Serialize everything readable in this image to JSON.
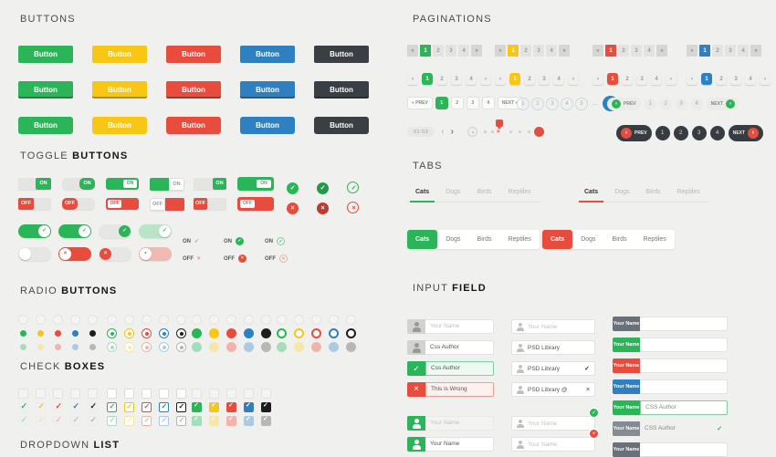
{
  "palette_buttons": [
    "green",
    "yellow",
    "red",
    "blue",
    "dark"
  ],
  "palette_rc": [
    "green",
    "yellow",
    "red",
    "blue",
    "black"
  ],
  "buttons": {
    "heading": {
      "a": "BUTTONS",
      "b": ""
    },
    "label": "Button"
  },
  "toggles": {
    "heading": {
      "a": "TOGGLE",
      "b": "BUTTONS"
    },
    "row_on": [
      {
        "v": "sq",
        "t": "ON"
      },
      {
        "v": "rd",
        "t": "ON"
      },
      {
        "v": "fill",
        "t": "ON"
      },
      {
        "v": "half",
        "t": "ON"
      },
      {
        "v": "sq2",
        "t": "ON"
      },
      {
        "v": "fill2",
        "t": "ON"
      },
      {
        "v": "c-solid",
        "t": "✓"
      },
      {
        "v": "c-solid2",
        "t": "✓"
      },
      {
        "v": "c-line",
        "t": "✓"
      }
    ],
    "row_off": [
      {
        "v": "sq",
        "t": "OFF"
      },
      {
        "v": "rd",
        "t": "OFF"
      },
      {
        "v": "fill",
        "t": "OFF"
      },
      {
        "v": "half",
        "t": "OFF"
      },
      {
        "v": "sq2",
        "t": "OFF"
      },
      {
        "v": "fill2",
        "t": "OFF"
      },
      {
        "v": "c-solid",
        "t": "×"
      },
      {
        "v": "c-solid2",
        "t": "×"
      },
      {
        "v": "c-line",
        "t": "×"
      }
    ],
    "pills_on": [
      {
        "v": "p1",
        "t": "✓"
      },
      {
        "v": "p2",
        "t": "✓"
      },
      {
        "v": "p3",
        "t": "✓"
      },
      {
        "v": "p4",
        "t": "✓"
      }
    ],
    "pills_off": [
      {
        "v": "p1",
        "t": ""
      },
      {
        "v": "p2",
        "t": "×"
      },
      {
        "v": "p3",
        "t": "×"
      },
      {
        "v": "p4",
        "t": "•"
      }
    ],
    "texts": [
      {
        "style": "plain",
        "on": {
          "t": "ON",
          "g": "✓"
        },
        "off": {
          "t": "OFF",
          "g": "×"
        }
      },
      {
        "style": "solid",
        "on": {
          "t": "ON",
          "g": "✓"
        },
        "off": {
          "t": "OFF",
          "g": "×"
        }
      },
      {
        "style": "ring",
        "on": {
          "t": "ON",
          "g": "✓"
        },
        "off": {
          "t": "OFF",
          "g": "×"
        }
      }
    ]
  },
  "radios": {
    "heading": {
      "a": "RADIO",
      "b": "BUTTONS"
    }
  },
  "checks": {
    "heading": {
      "a": "CHECK",
      "b": "BOXES"
    }
  },
  "dropdown": {
    "heading": {
      "a": "DROPDOWN",
      "b": "LIST"
    }
  },
  "paginations": {
    "heading": {
      "a": "PAGINATIONS",
      "b": ""
    },
    "row1": [
      {
        "color": "green",
        "prev": "«",
        "active": "1",
        "pages": [
          "2",
          "3",
          "4"
        ],
        "next": "»"
      },
      {
        "color": "yellow",
        "prev": "«",
        "active": "1",
        "pages": [
          "2",
          "3",
          "4"
        ],
        "next": "»"
      },
      {
        "color": "red",
        "prev": "«",
        "active": "1",
        "pages": [
          "2",
          "3",
          "4"
        ],
        "next": "»"
      },
      {
        "color": "blue",
        "prev": "«",
        "active": "1",
        "pages": [
          "2",
          "3",
          "4"
        ],
        "next": "»"
      }
    ],
    "row2": [
      {
        "color": "green",
        "prev": "‹",
        "active": "1",
        "pages": [
          "2",
          "3",
          "4"
        ],
        "next": "›"
      },
      {
        "color": "yellow",
        "prev": "‹",
        "active": "1",
        "pages": [
          "2",
          "3",
          "4"
        ],
        "next": "›"
      },
      {
        "color": "red",
        "prev": "‹",
        "active": "1",
        "pages": [
          "2",
          "3",
          "4"
        ],
        "next": "›"
      },
      {
        "color": "blue",
        "prev": "‹",
        "active": "1",
        "pages": [
          "2",
          "3",
          "4"
        ],
        "next": "›"
      }
    ],
    "bordered": {
      "color": "green",
      "prev": "« PREV",
      "active": "1",
      "pages": [
        "2",
        "3",
        "4"
      ],
      "next": "NEXT »"
    },
    "circles": {
      "pages": [
        "1",
        "2",
        "3",
        "4",
        "5"
      ],
      "ellipsis": "…",
      "last": "8"
    },
    "pill_light": {
      "prev": "PREV",
      "prev_icon": "‹",
      "pages": [
        "1",
        "2",
        "3",
        "4"
      ],
      "next": "NEXT",
      "next_icon": "›"
    },
    "timer": {
      "time": "01:03",
      "back": "‹",
      "fwd": "›"
    },
    "stepper": {
      "marker": "×"
    },
    "pill_dark": {
      "prev": "PREV",
      "prev_icon": "‹",
      "pages": [
        "1",
        "2",
        "3",
        "4"
      ],
      "next": "NEXT",
      "next_icon": "›"
    }
  },
  "tabs": {
    "heading": {
      "a": "TABS",
      "b": ""
    },
    "underline": [
      {
        "color": "green",
        "items": [
          {
            "t": "Cats",
            "on": "1"
          },
          {
            "t": "Dogs"
          },
          {
            "t": "Birds"
          },
          {
            "t": "Reptiles"
          }
        ]
      },
      {
        "color": "red",
        "items": [
          {
            "t": "Cats",
            "on": "1"
          },
          {
            "t": "Dogs"
          },
          {
            "t": "Birds"
          },
          {
            "t": "Reptiles"
          }
        ]
      }
    ],
    "boxed": [
      {
        "color": "green",
        "items": [
          {
            "t": "Cats",
            "on": "1"
          },
          {
            "t": "Dogs"
          },
          {
            "t": "Birds"
          },
          {
            "t": "Reptiles"
          }
        ]
      },
      {
        "color": "red",
        "items": [
          {
            "t": "Cats",
            "on": "1"
          },
          {
            "t": "Dogs"
          },
          {
            "t": "Birds"
          },
          {
            "t": "Reptiles"
          }
        ]
      }
    ]
  },
  "inputs": {
    "heading": {
      "a": "INPUT",
      "b": "FIELD"
    },
    "col1": [
      {
        "iconbg": "gray",
        "icon": "user",
        "text": "Your Name",
        "kind": "ph"
      },
      {
        "iconbg": "gray",
        "icon": "user",
        "text": "Css Author",
        "kind": "val"
      },
      {
        "iconbg": "green",
        "icon": "check",
        "text": "Css Author",
        "kind": "val",
        "state": "valid"
      },
      {
        "iconbg": "red",
        "icon": "x",
        "text": "This is Wrong",
        "kind": "val",
        "state": "invalid"
      },
      {
        "iconbg": "green",
        "icon": "user",
        "text": "Your Name",
        "kind": "ph",
        "state": "muted"
      },
      {
        "iconbg": "green",
        "icon": "user",
        "text": "Your Name",
        "kind": "val"
      }
    ],
    "col2": [
      {
        "text": "Your Name",
        "kind": "ph"
      },
      {
        "text": "PSD Library",
        "kind": "val"
      },
      {
        "text": "PSD Library",
        "kind": "val",
        "suffix": "✓",
        "suffixcolor": "dark"
      },
      {
        "text": "PSD Library @",
        "kind": "val",
        "suffix": "×",
        "suffixcolor": "red"
      },
      {
        "text": "Your Name",
        "kind": "ph",
        "badge": "✓",
        "badgecolor": "green"
      },
      {
        "text": "Your Name",
        "kind": "ph",
        "badge": "×",
        "badgecolor": "red"
      }
    ],
    "col3": [
      {
        "label": "Your Name",
        "labelbg": "dark",
        "text": "",
        "kind": "ph"
      },
      {
        "label": "Your Name",
        "labelbg": "green",
        "text": "",
        "kind": "ph"
      },
      {
        "label": "Your Name",
        "labelbg": "red",
        "text": "",
        "kind": "ph"
      },
      {
        "label": "Your Name",
        "labelbg": "blue",
        "text": "",
        "kind": "ph"
      },
      {
        "label": "Your Name",
        "labelbg": "green",
        "text": "CSS Author",
        "kind": "val",
        "state": "valid"
      },
      {
        "label": "Your Name",
        "labelbg": "gray",
        "text": "CSS Author",
        "kind": "val",
        "state": "flat",
        "suffix": "✓",
        "suffixcolor": "green"
      },
      {
        "label": "Your Name",
        "labelbg": "dark",
        "text": "",
        "kind": "ph"
      }
    ]
  }
}
